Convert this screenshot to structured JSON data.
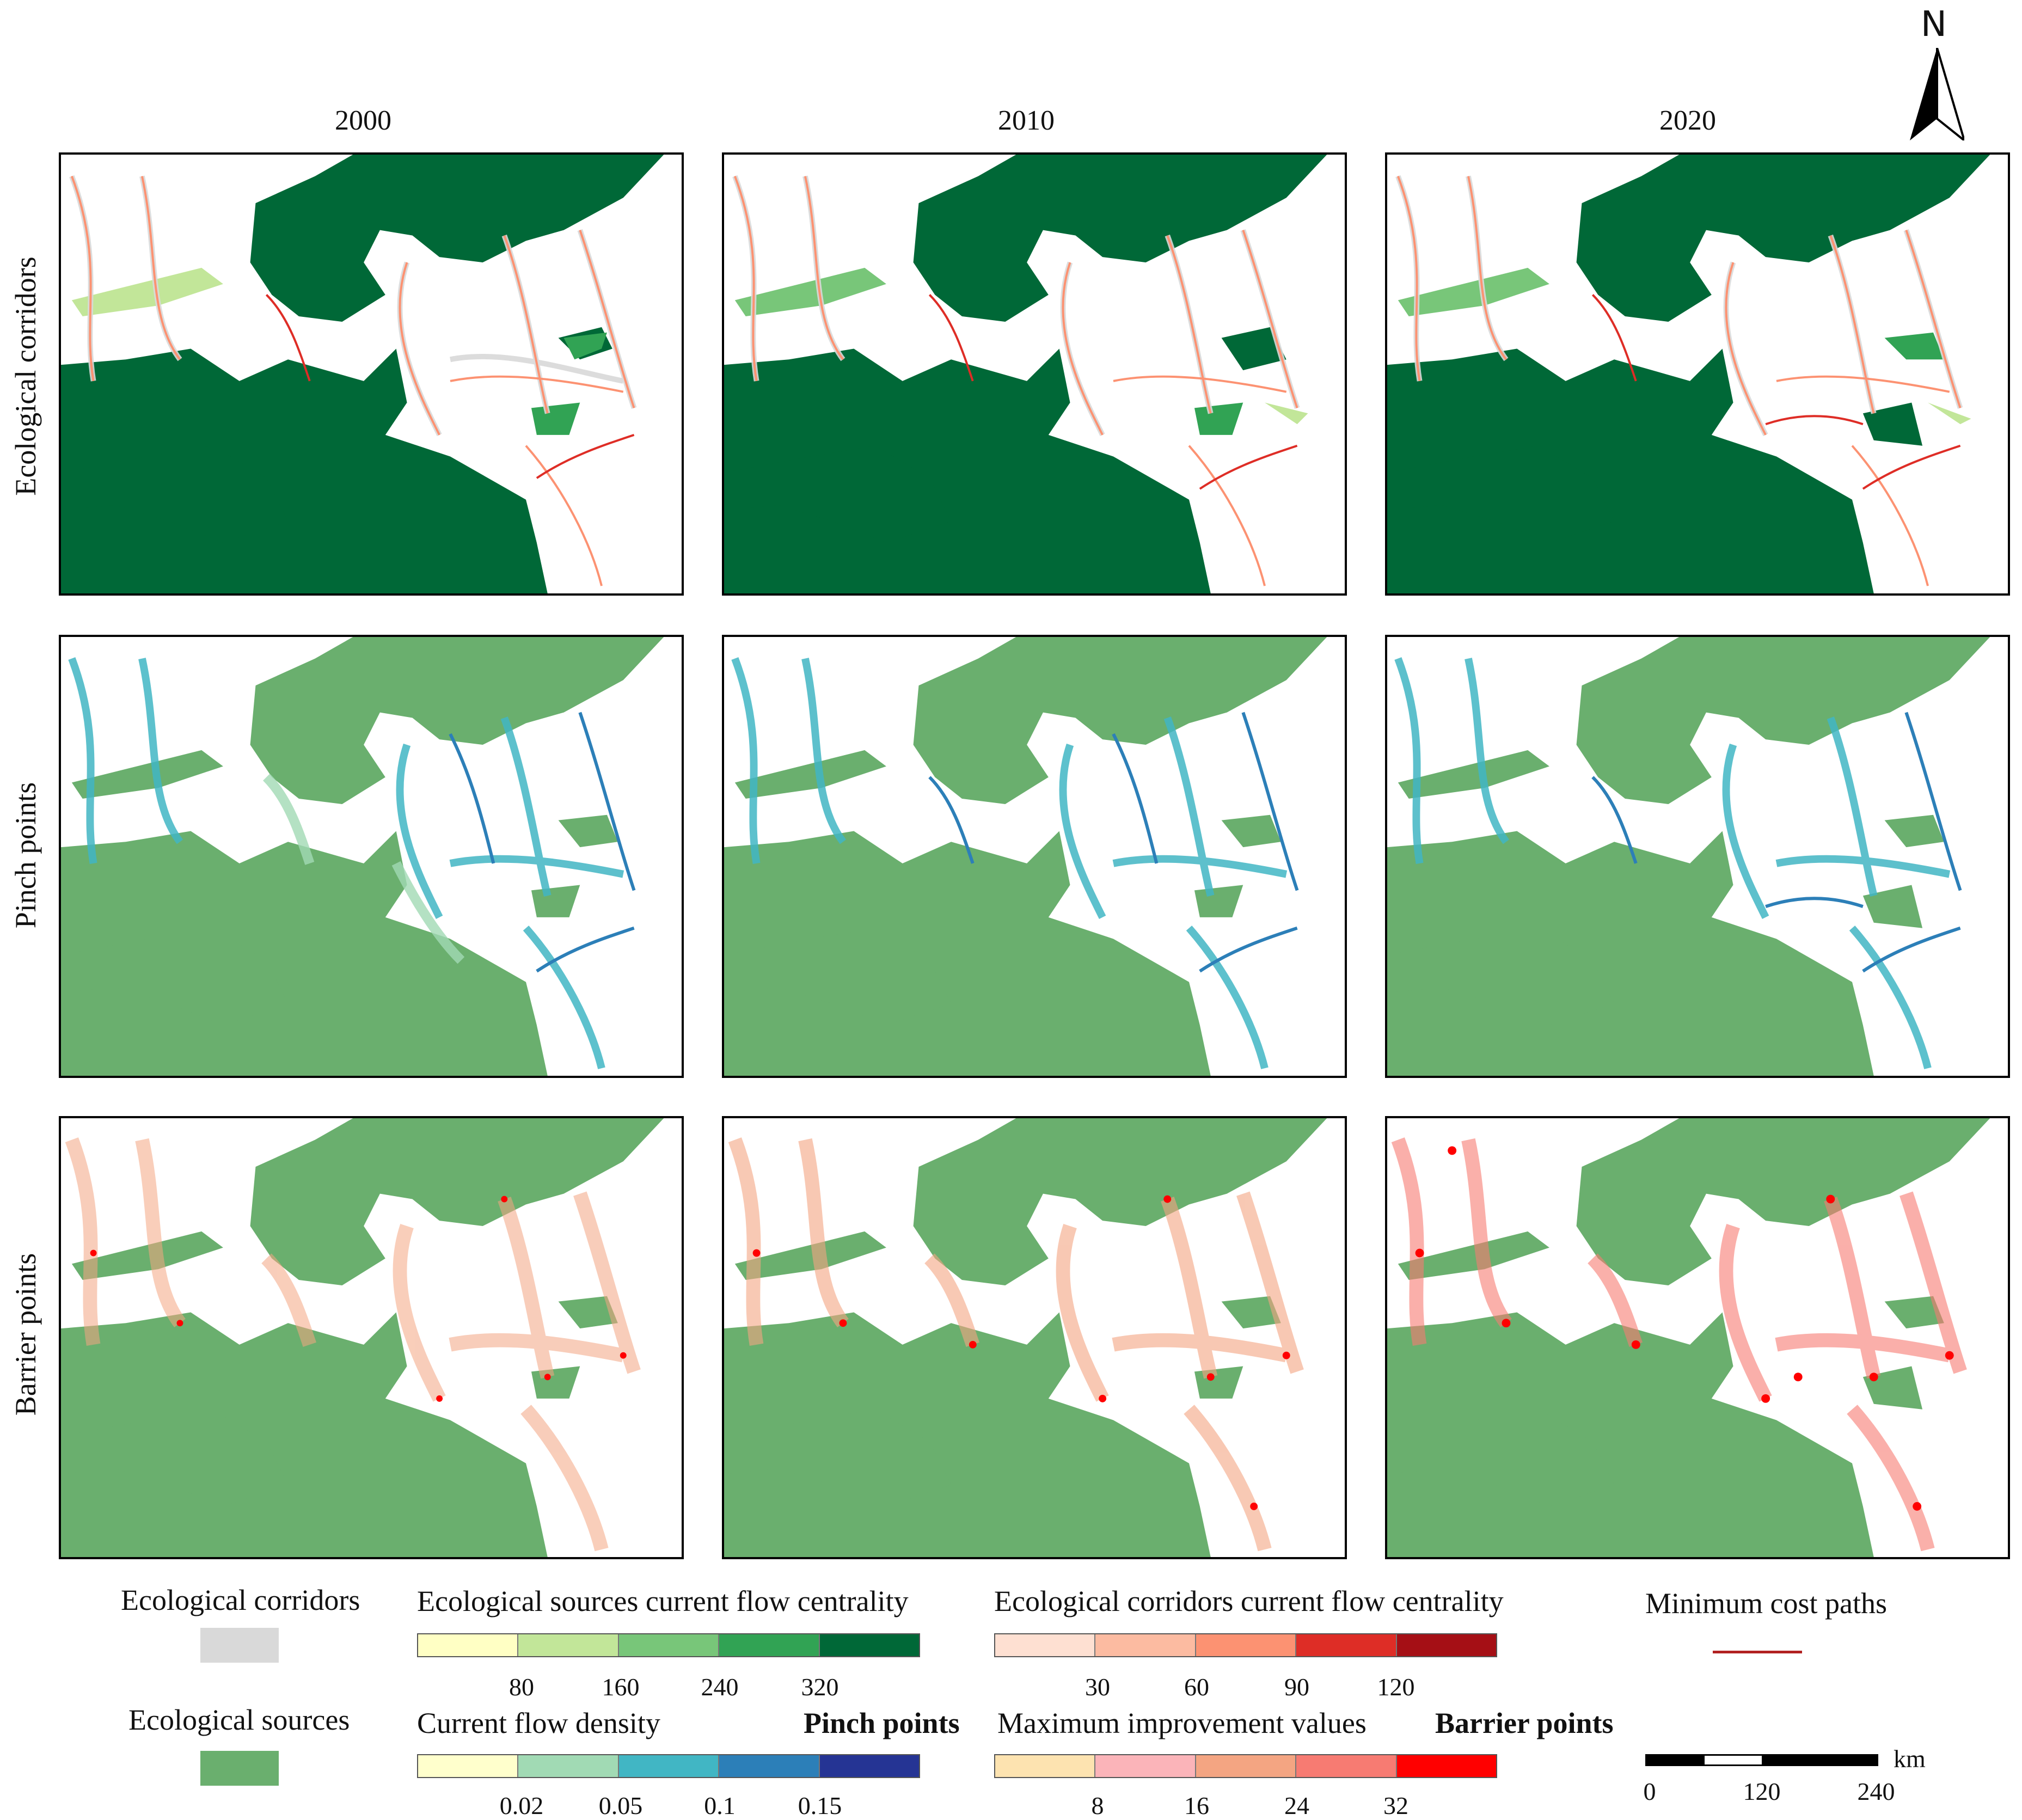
{
  "columns": [
    "2000",
    "2010",
    "2020"
  ],
  "rows": [
    "Ecological corridors",
    "Pinch points",
    "Barrier points"
  ],
  "north_label": "N",
  "legend": {
    "corridors_label": "Ecological corridors",
    "sources_label": "Ecological sources",
    "sources_cfc_title": "Ecological sources current flow centrality",
    "sources_cfc_ticks": [
      "80",
      "160",
      "240",
      "320"
    ],
    "sources_cfc_colors": [
      "#ffffc4",
      "#c2e699",
      "#78c679",
      "#31a354",
      "#006837"
    ],
    "corridors_cfc_title": "Ecological corridors current flow centrality",
    "corridors_cfc_ticks": [
      "30",
      "60",
      "90",
      "120"
    ],
    "corridors_cfc_colors": [
      "#fee0d2",
      "#fcbba1",
      "#fc9272",
      "#de2d26",
      "#a50f15"
    ],
    "min_cost_label": "Minimum cost paths",
    "density_title": "Current flow density",
    "pinch_label": "Pinch points",
    "density_ticks": [
      "0.02",
      "0.05",
      "0.1",
      "0.15"
    ],
    "density_colors": [
      "#ffffcc",
      "#a1dab4",
      "#41b6c4",
      "#2c7fb8",
      "#253494"
    ],
    "improve_title": "Maximum improvement values",
    "barrier_label": "Barrier points",
    "improve_ticks": [
      "8",
      "16",
      "24",
      "32"
    ],
    "improve_colors": [
      "#fde3b0",
      "#fbb4b9",
      "#f4a582",
      "#f77b72",
      "#ff0000"
    ],
    "scale_unit": "km",
    "scale_ticks": [
      "0",
      "120",
      "240"
    ]
  },
  "colors": {
    "source_dark": "#006837",
    "source_light": "#6aaf6e",
    "corridor_gray": "#d9d9d9",
    "min_cost_path": "#b22222"
  }
}
